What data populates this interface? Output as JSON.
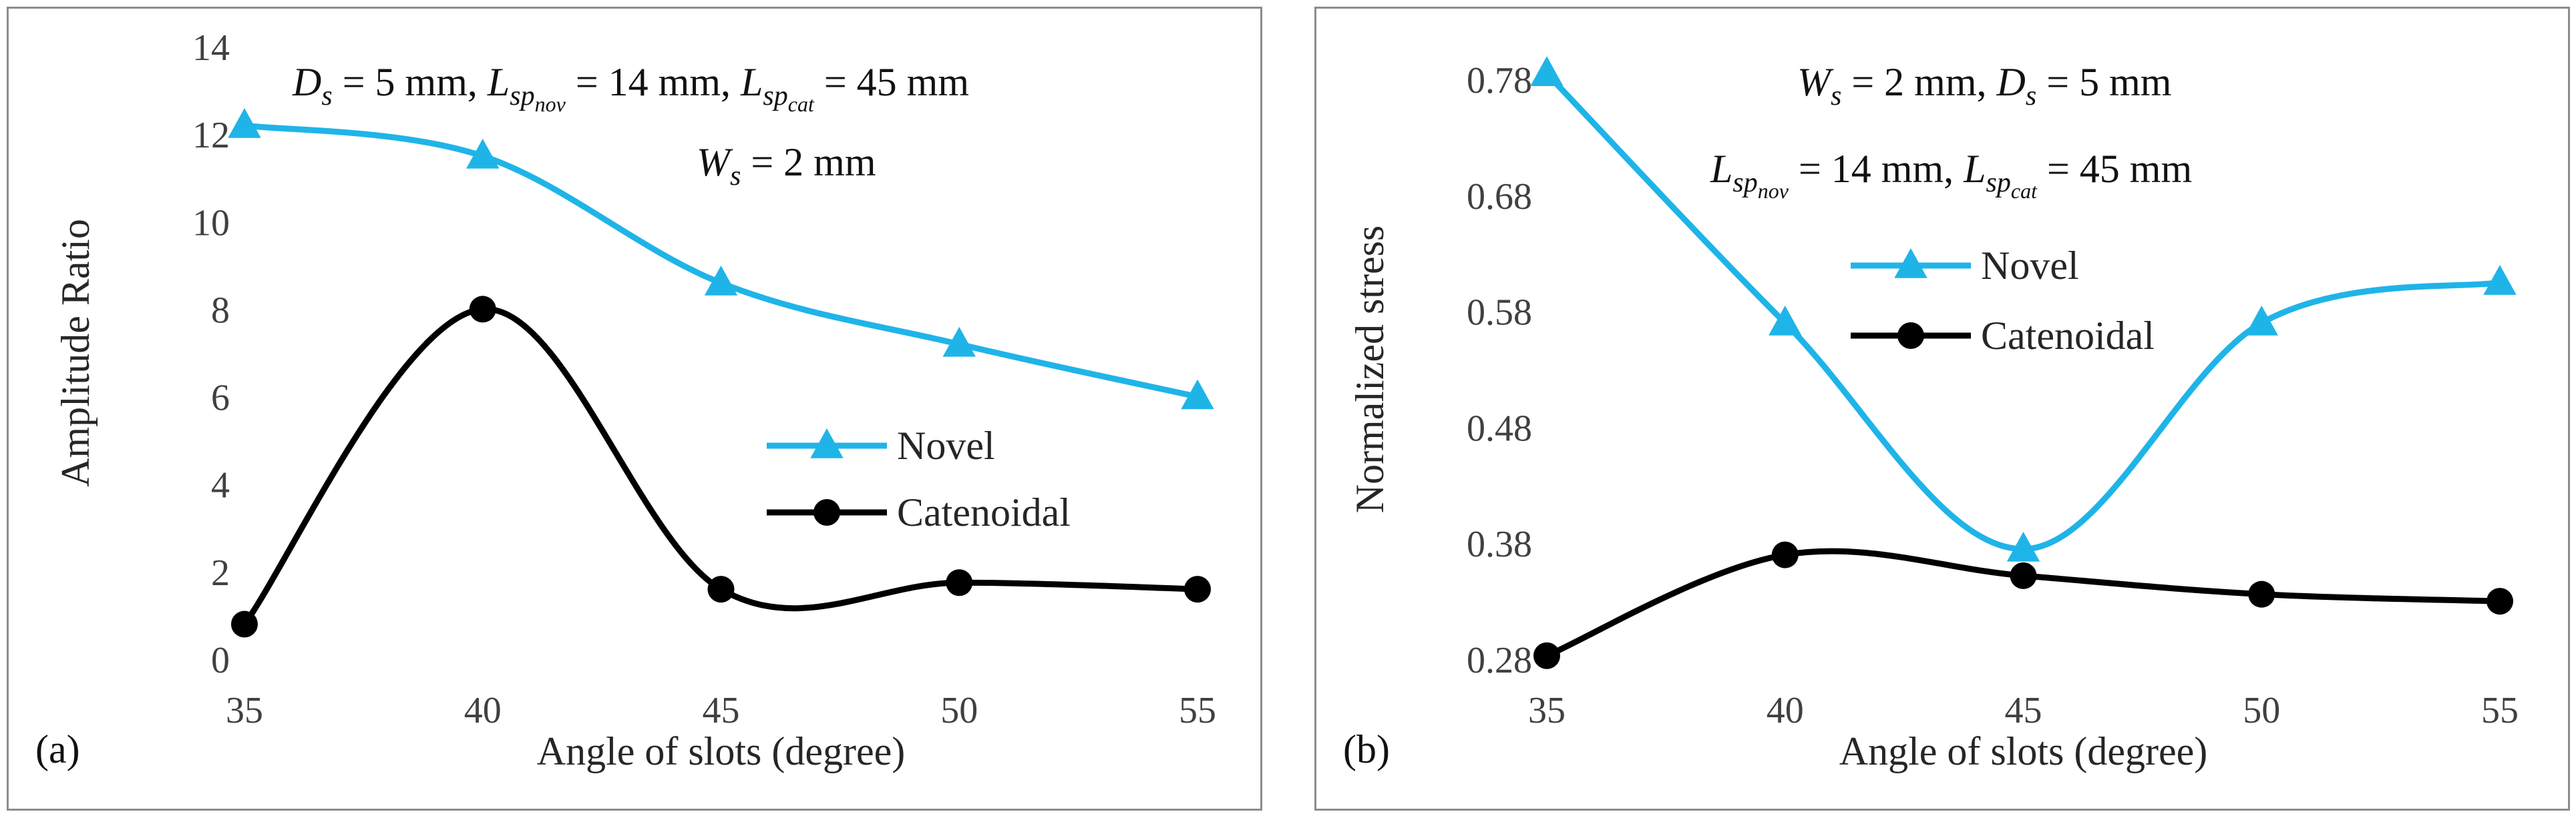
{
  "chart_data": [
    {
      "type": "line",
      "panel_label": "(a)",
      "xlabel": "Angle of slots (degree)",
      "ylabel": "Amplitude Ratio",
      "x": [
        35,
        40,
        45,
        50,
        55
      ],
      "x_ticks": [
        "35",
        "40",
        "45",
        "50",
        "55"
      ],
      "ylim": [
        0,
        14
      ],
      "y_ticks": [
        "0",
        "2",
        "4",
        "6",
        "8",
        "10",
        "12",
        "14"
      ],
      "y_tick_values": [
        0,
        2,
        4,
        6,
        8,
        10,
        12,
        14
      ],
      "series": [
        {
          "name": "Novel",
          "color": "#1fb4e8",
          "marker": "triangle",
          "values": [
            12.2,
            11.5,
            8.6,
            7.2,
            6.0
          ]
        },
        {
          "name": "Catenoidal",
          "color": "#000000",
          "marker": "circle",
          "values": [
            0.8,
            8.0,
            1.6,
            1.75,
            1.6
          ]
        }
      ],
      "annotations": {
        "line1": {
          "ds_var": "D",
          "ds_sub": "s",
          "ds_val": " = 5 mm,",
          "lnov_var": "L",
          "lnov_sub": "sp",
          "lnov_sub2": "nov",
          "lnov_val": " = 14 mm,",
          "lcat_var": "L",
          "lcat_sub": "sp",
          "lcat_sub2": "cat",
          "lcat_val": " = 45 mm"
        },
        "line2": {
          "ws_var": "W",
          "ws_sub": "s",
          "ws_val": " = 2 mm"
        }
      }
    },
    {
      "type": "line",
      "panel_label": "(b)",
      "xlabel": "Angle of slots (degree)",
      "ylabel": "Normalized stress",
      "x": [
        35,
        40,
        45,
        50,
        55
      ],
      "x_ticks": [
        "35",
        "40",
        "45",
        "50",
        "55"
      ],
      "ylim": [
        0.28,
        0.78
      ],
      "y_ticks": [
        "0.28",
        "0.38",
        "0.48",
        "0.58",
        "0.68",
        "0.78"
      ],
      "y_tick_values": [
        0.28,
        0.38,
        0.48,
        0.58,
        0.68,
        0.78
      ],
      "series": [
        {
          "name": "Novel",
          "color": "#1fb4e8",
          "marker": "triangle",
          "values": [
            0.785,
            0.57,
            0.375,
            0.57,
            0.605
          ]
        },
        {
          "name": "Catenoidal",
          "color": "#000000",
          "marker": "circle",
          "values": [
            0.283,
            0.37,
            0.352,
            0.336,
            0.33
          ]
        }
      ],
      "annotations": {
        "line1": {
          "ws_var": "W",
          "ws_sub": "s",
          "ws_val": " = 2 mm,",
          "ds_var": "D",
          "ds_sub": "s",
          "ds_val": " = 5 mm"
        },
        "line2": {
          "lnov_var": "L",
          "lnov_sub": "sp",
          "lnov_sub2": "nov",
          "lnov_val": " = 14 mm,",
          "lcat_var": "L",
          "lcat_sub": "sp",
          "lcat_sub2": "cat",
          "lcat_val": " = 45 mm"
        }
      }
    }
  ]
}
